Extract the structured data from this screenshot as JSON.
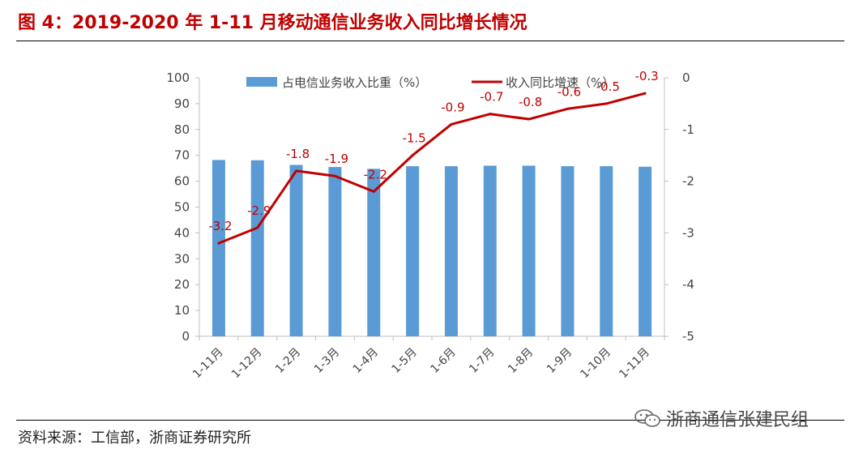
{
  "header": {
    "title": "图 4：2019-2020 年 1-11 月移动通信业务收入同比增长情况"
  },
  "footer": {
    "source": "资料来源：工信部，浙商证券研究所",
    "watermark": "浙商通信张建民组"
  },
  "colors": {
    "bar": "#5b9bd5",
    "line": "#c00000",
    "title": "#c00000"
  },
  "chart_data": {
    "type": "bar",
    "title": "",
    "categories": [
      "1-11月",
      "1-12月",
      "1-2月",
      "1-3月",
      "1-4月",
      "1-5月",
      "1-6月",
      "1-7月",
      "1-8月",
      "1-9月",
      "1-10月",
      "1-11月"
    ],
    "series": [
      {
        "name": "占电信业务收入比重（%）",
        "type": "bar",
        "axis": "left",
        "values": [
          68.2,
          68.1,
          66.3,
          65.5,
          64.8,
          65.8,
          65.8,
          66.0,
          66.0,
          65.8,
          65.8,
          65.6
        ]
      },
      {
        "name": "收入同比增速（%）",
        "type": "line",
        "axis": "right",
        "values": [
          -3.2,
          -2.9,
          -1.8,
          -1.9,
          -2.2,
          -1.5,
          -0.9,
          -0.7,
          -0.8,
          -0.6,
          -0.5,
          -0.3
        ],
        "labels": [
          "-3.2",
          "-2.9",
          "-1.8",
          "-1.9",
          "-2.2",
          "-1.5",
          "-0.9",
          "-0.7",
          "-0.8",
          "-0.6",
          "-0.5",
          "-0.3"
        ]
      }
    ],
    "y_left": {
      "min": 0,
      "max": 100,
      "ticks": [
        "0",
        "10",
        "20",
        "30",
        "40",
        "50",
        "60",
        "70",
        "80",
        "90",
        "100"
      ]
    },
    "y_right": {
      "min": -5,
      "max": 0,
      "ticks": [
        "-5",
        "-4",
        "-3",
        "-2",
        "-1",
        "0"
      ]
    },
    "legend": "top",
    "grid": false
  }
}
